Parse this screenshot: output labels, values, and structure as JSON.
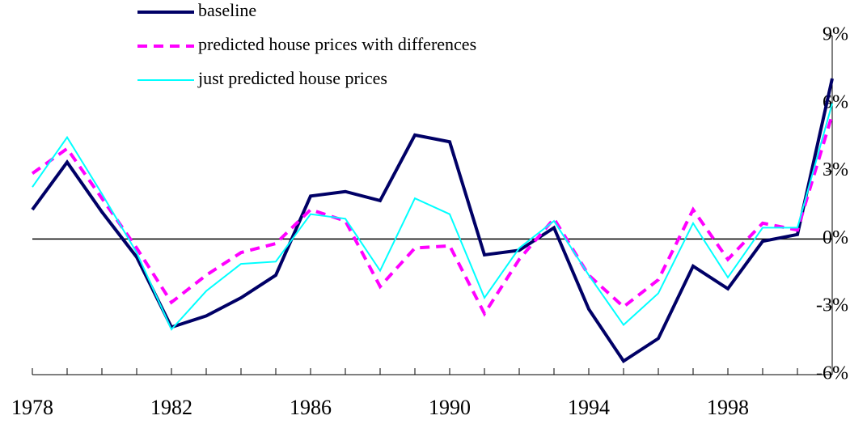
{
  "chart_data": {
    "type": "line",
    "x": [
      1978,
      1979,
      1980,
      1981,
      1982,
      1983,
      1984,
      1985,
      1986,
      1987,
      1988,
      1989,
      1990,
      1991,
      1992,
      1993,
      1994,
      1995,
      1996,
      1997,
      1998,
      1999,
      2000,
      2001
    ],
    "xlim": [
      1978,
      2001
    ],
    "xticks": [
      1978,
      1982,
      1986,
      1990,
      1994,
      1998
    ],
    "ylim": [
      -6,
      9
    ],
    "yticks": [
      {
        "value": -6,
        "label": "-6%"
      },
      {
        "value": -3,
        "label": "-3%"
      },
      {
        "value": 0,
        "label": "0%"
      },
      {
        "value": 3,
        "label": "3%"
      },
      {
        "value": 6,
        "label": "6%"
      },
      {
        "value": 9,
        "label": "9%"
      }
    ],
    "series": [
      {
        "name": "baseline",
        "color": "#000066",
        "dash": false,
        "width": 4,
        "values": [
          1.3,
          3.4,
          1.2,
          -0.8,
          -3.9,
          -3.4,
          -2.6,
          -1.6,
          1.9,
          2.1,
          1.7,
          4.6,
          4.3,
          -0.7,
          -0.5,
          0.5,
          -3.1,
          -5.4,
          -4.4,
          -1.2,
          -2.2,
          -0.1,
          0.2,
          7.1
        ]
      },
      {
        "name": "predicted house prices with differences",
        "color": "#ff00ff",
        "dash": true,
        "width": 4,
        "values": [
          2.9,
          4.0,
          1.8,
          -0.4,
          -2.8,
          -1.6,
          -0.6,
          -0.2,
          1.3,
          0.8,
          -2.1,
          -0.4,
          -0.3,
          -3.3,
          -0.9,
          0.9,
          -1.6,
          -3.0,
          -1.8,
          1.3,
          -0.9,
          0.7,
          0.4,
          5.5
        ]
      },
      {
        "name": "just predicted house prices",
        "color": "#00ffff",
        "dash": false,
        "width": 2,
        "values": [
          2.3,
          4.5,
          2.0,
          -0.6,
          -4.0,
          -2.3,
          -1.1,
          -1.0,
          1.1,
          0.9,
          -1.4,
          1.8,
          1.1,
          -2.6,
          -0.4,
          0.8,
          -1.6,
          -3.8,
          -2.4,
          0.7,
          -1.7,
          0.5,
          0.5,
          6.0
        ]
      }
    ]
  }
}
